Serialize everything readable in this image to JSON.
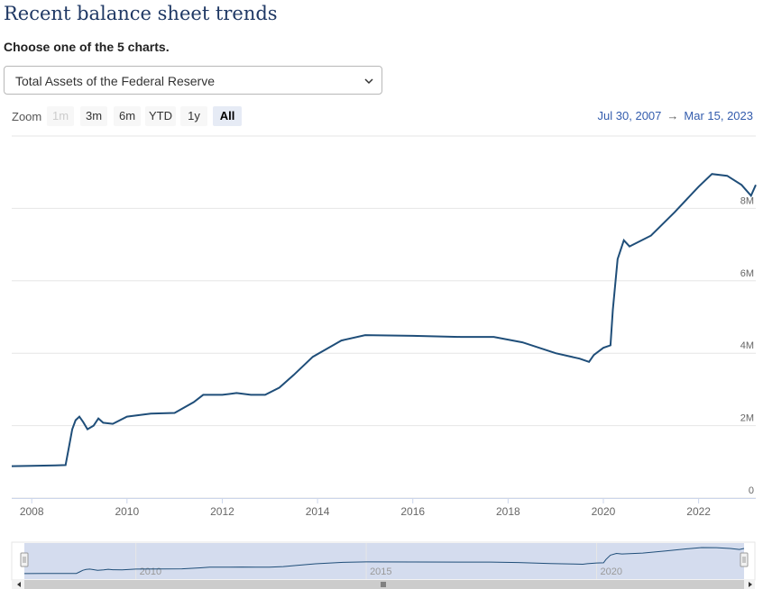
{
  "page": {
    "title": "Recent balance sheet trends",
    "subtitle": "Choose one of the 5 charts.",
    "select_value": "Total Assets of the Federal Reserve"
  },
  "zoom": {
    "label": "Zoom",
    "buttons": [
      {
        "label": "1m",
        "state": "disabled"
      },
      {
        "label": "3m",
        "state": "normal"
      },
      {
        "label": "6m",
        "state": "normal"
      },
      {
        "label": "YTD",
        "state": "normal"
      },
      {
        "label": "1y",
        "state": "normal"
      },
      {
        "label": "All",
        "state": "active"
      }
    ]
  },
  "range": {
    "from": "Jul 30, 2007",
    "arrow": "→",
    "to": "Mar 15, 2023"
  },
  "colors": {
    "line": "#1f4e79",
    "navigator_fill": "#ccd6eb",
    "range_text": "#335cad"
  },
  "chart_data": {
    "type": "line",
    "title": "",
    "xlabel": "",
    "ylabel": "",
    "x_unit": "year",
    "xlim": [
      2007.58,
      2023.2
    ],
    "ylim": [
      0,
      10
    ],
    "y_ticks": [
      {
        "v": 0,
        "label": "0"
      },
      {
        "v": 2,
        "label": "2M"
      },
      {
        "v": 4,
        "label": "4M"
      },
      {
        "v": 6,
        "label": "6M"
      },
      {
        "v": 8,
        "label": "8M"
      }
    ],
    "x_ticks": [
      "2008",
      "2010",
      "2012",
      "2014",
      "2016",
      "2018",
      "2020",
      "2022"
    ],
    "navigator_ticks": [
      "2010",
      "2015",
      "2020"
    ],
    "grid": true,
    "series": [
      {
        "points": [
          [
            2007.58,
            0.88
          ],
          [
            2008.0,
            0.89
          ],
          [
            2008.5,
            0.9
          ],
          [
            2008.71,
            0.91
          ],
          [
            2008.78,
            1.4
          ],
          [
            2008.85,
            1.9
          ],
          [
            2008.92,
            2.15
          ],
          [
            2009.0,
            2.25
          ],
          [
            2009.08,
            2.1
          ],
          [
            2009.17,
            1.9
          ],
          [
            2009.3,
            2.0
          ],
          [
            2009.4,
            2.2
          ],
          [
            2009.5,
            2.08
          ],
          [
            2009.7,
            2.05
          ],
          [
            2010.0,
            2.25
          ],
          [
            2010.5,
            2.33
          ],
          [
            2011.0,
            2.35
          ],
          [
            2011.4,
            2.65
          ],
          [
            2011.6,
            2.85
          ],
          [
            2012.0,
            2.85
          ],
          [
            2012.3,
            2.9
          ],
          [
            2012.6,
            2.85
          ],
          [
            2012.9,
            2.85
          ],
          [
            2013.2,
            3.05
          ],
          [
            2013.5,
            3.4
          ],
          [
            2013.9,
            3.9
          ],
          [
            2014.5,
            4.35
          ],
          [
            2015.0,
            4.5
          ],
          [
            2016.0,
            4.48
          ],
          [
            2017.0,
            4.45
          ],
          [
            2017.7,
            4.45
          ],
          [
            2018.3,
            4.3
          ],
          [
            2019.0,
            4.0
          ],
          [
            2019.5,
            3.85
          ],
          [
            2019.7,
            3.76
          ],
          [
            2019.8,
            3.95
          ],
          [
            2020.0,
            4.15
          ],
          [
            2020.15,
            4.22
          ],
          [
            2020.2,
            5.2
          ],
          [
            2020.3,
            6.6
          ],
          [
            2020.43,
            7.12
          ],
          [
            2020.55,
            6.95
          ],
          [
            2021.0,
            7.25
          ],
          [
            2021.5,
            7.9
          ],
          [
            2022.0,
            8.6
          ],
          [
            2022.28,
            8.95
          ],
          [
            2022.6,
            8.9
          ],
          [
            2022.9,
            8.65
          ],
          [
            2023.1,
            8.35
          ],
          [
            2023.2,
            8.65
          ]
        ]
      }
    ]
  }
}
